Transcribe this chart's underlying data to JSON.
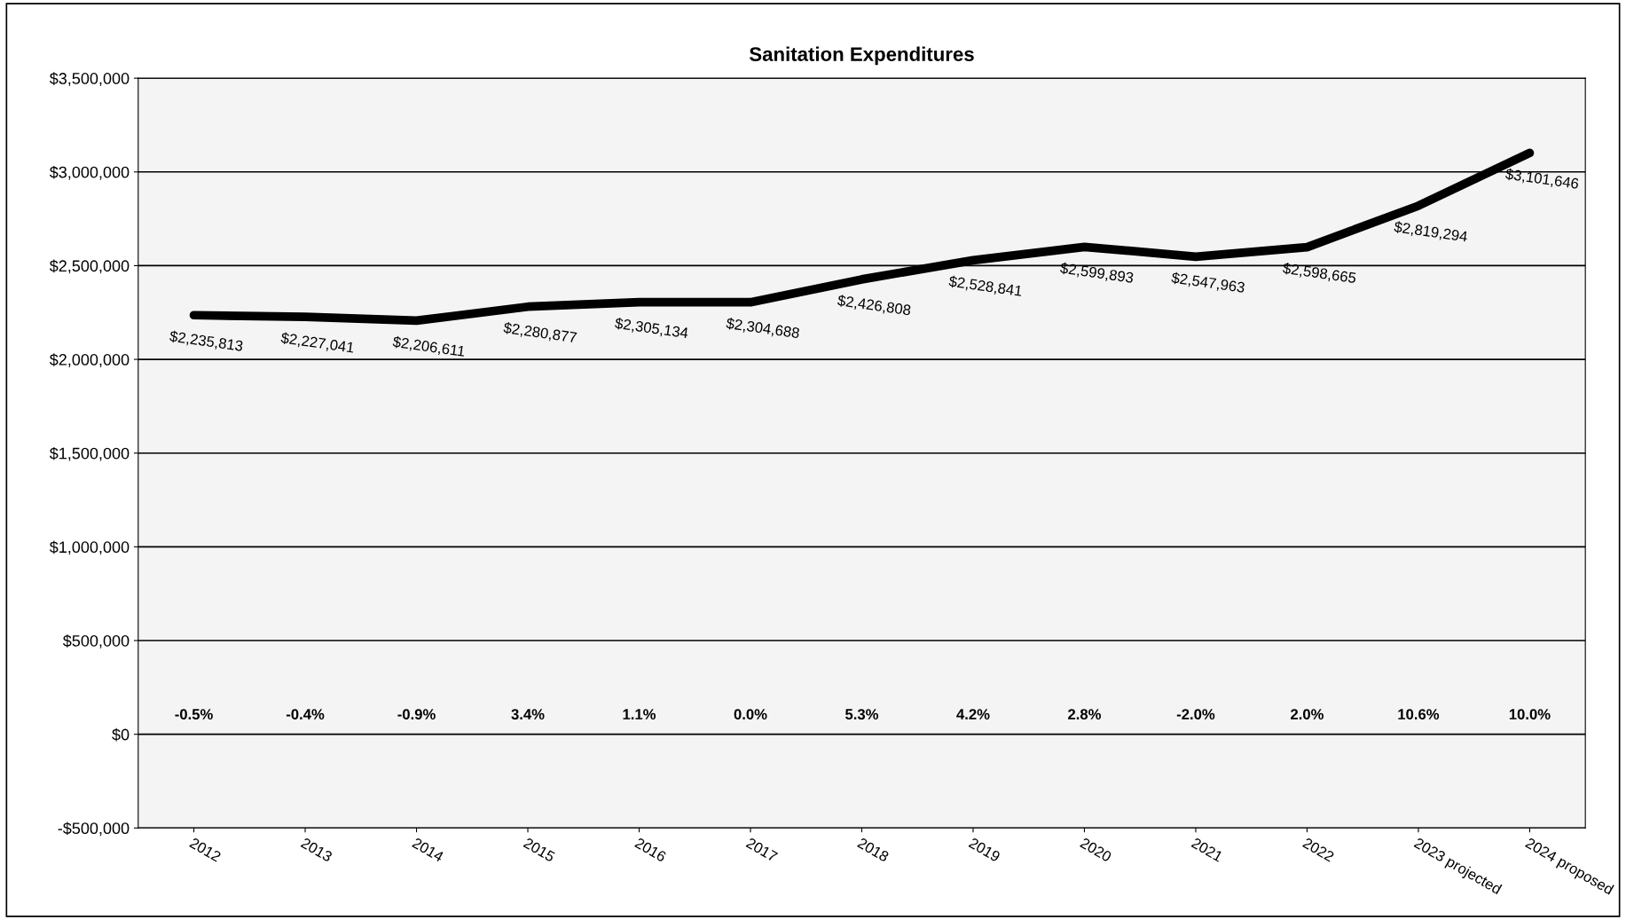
{
  "chart_data": {
    "type": "line",
    "title": "Sanitation Expenditures",
    "categories": [
      "2012",
      "2013",
      "2014",
      "2015",
      "2016",
      "2017",
      "2018",
      "2019",
      "2020",
      "2021",
      "2022",
      "2023 projected",
      "2024 proposed"
    ],
    "series": [
      {
        "color": "#000000",
        "values": [
          2235813,
          2227041,
          2206611,
          2280877,
          2305134,
          2304688,
          2426808,
          2528841,
          2599893,
          2547963,
          2598665,
          2819294,
          3101646
        ],
        "value_labels": [
          "$2,235,813",
          "$2,227,041",
          "$2,206,611",
          "$2,280,877",
          "$2,305,134",
          "$2,304,688",
          "$2,426,808",
          "$2,528,841",
          "$2,599,893",
          "$2,547,963",
          "$2,598,665",
          "$2,819,294",
          "$3,101,646"
        ]
      }
    ],
    "ylim": [
      -500000,
      3500000
    ],
    "yticks": [
      {
        "value": -500000,
        "label": "-$500,000"
      },
      {
        "value": 0,
        "label": "$0"
      },
      {
        "value": 500000,
        "label": "$500,000"
      },
      {
        "value": 1000000,
        "label": "$1,000,000"
      },
      {
        "value": 1500000,
        "label": "$1,500,000"
      },
      {
        "value": 2000000,
        "label": "$2,000,000"
      },
      {
        "value": 2500000,
        "label": "$2,500,000"
      },
      {
        "value": 3000000,
        "label": "$3,000,000"
      },
      {
        "value": 3500000,
        "label": "$3,500,000"
      }
    ],
    "grid": "y",
    "marker": "none",
    "line_style": "solid",
    "legend": false,
    "annotations": [
      "-0.5%",
      "-0.4%",
      "-0.9%",
      "3.4%",
      "1.1%",
      "0.0%",
      "5.3%",
      "4.2%",
      "2.8%",
      "-2.0%",
      "2.0%",
      "10.6%",
      "10.0%"
    ]
  }
}
